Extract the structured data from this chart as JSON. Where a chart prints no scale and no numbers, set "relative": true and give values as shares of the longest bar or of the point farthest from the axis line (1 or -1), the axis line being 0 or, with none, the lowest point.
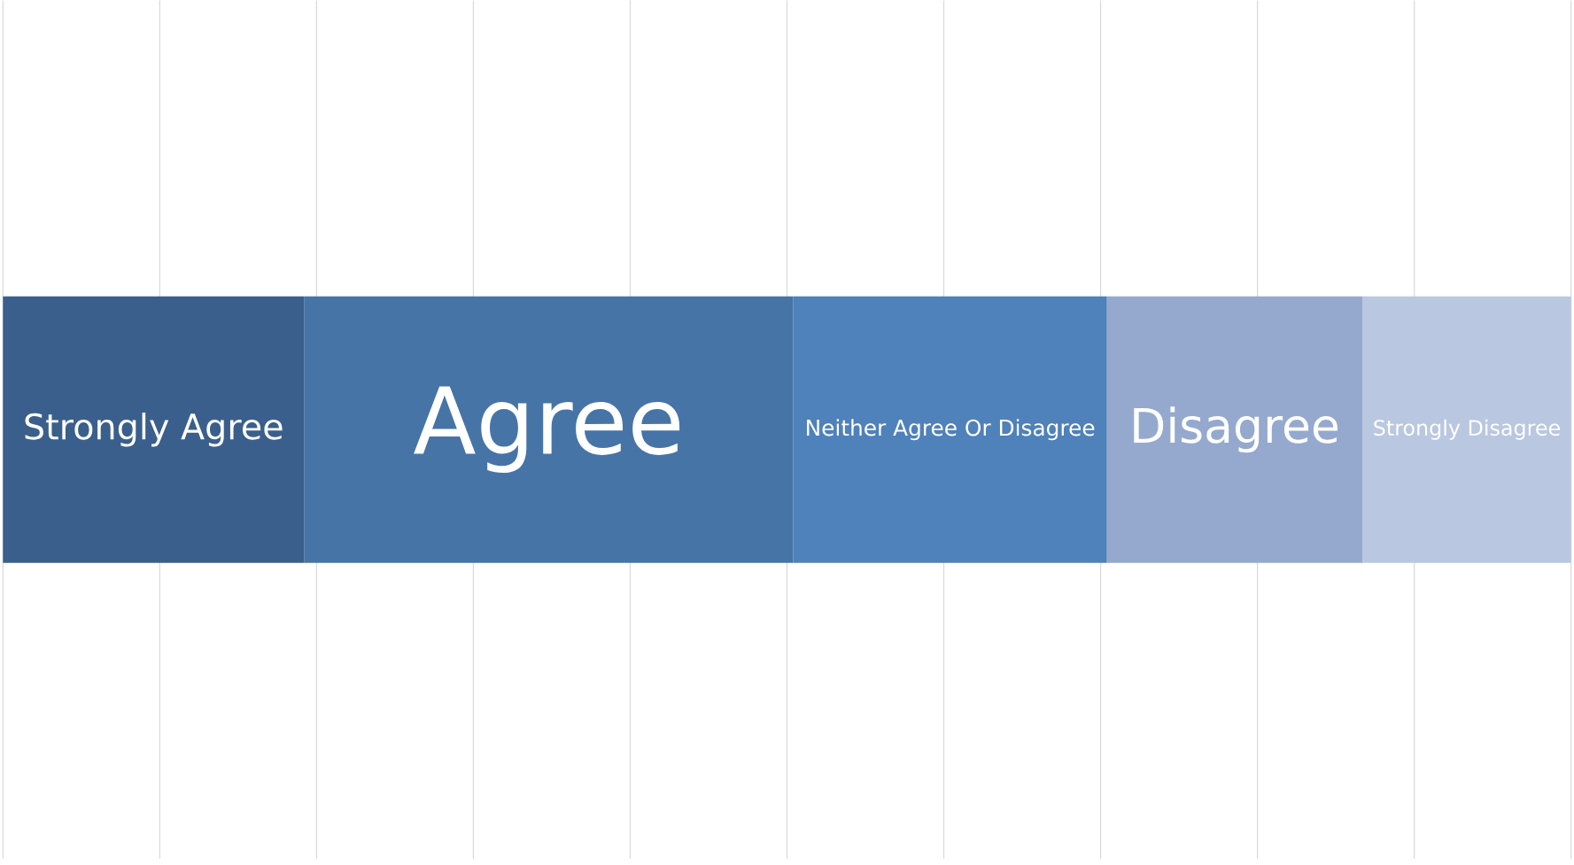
{
  "chart_data": {
    "type": "bar",
    "orientation": "horizontal",
    "stacked": true,
    "relative": true,
    "categories": [
      null
    ],
    "series": [
      {
        "name": "Strongly Agree",
        "color": "#3b5f8c",
        "values": [
          0.192
        ]
      },
      {
        "name": "Agree",
        "color": "#4674a7",
        "values": [
          0.312
        ]
      },
      {
        "name": "Neither Agree Or Disagree",
        "color": "#4f81bb",
        "values": [
          0.2
        ]
      },
      {
        "name": "Disagree",
        "color": "#95a9cf",
        "values": [
          0.163
        ]
      },
      {
        "name": "Strongly Disagree",
        "color": "#bac7e0",
        "values": [
          0.133
        ]
      }
    ],
    "grid": "x"
  }
}
